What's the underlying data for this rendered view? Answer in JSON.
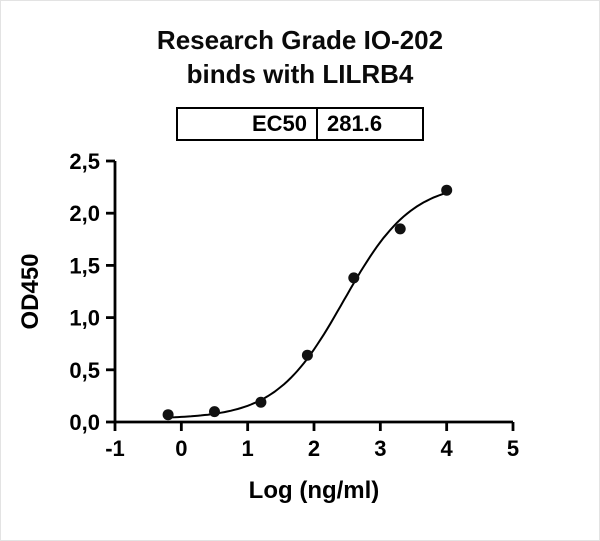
{
  "title_lines": [
    "Research Grade IO-202",
    "binds with LILRB4"
  ],
  "ec50_table": {
    "label": "EC50",
    "value": "281.6"
  },
  "chart_data": {
    "type": "scatter",
    "title": "Research Grade IO-202 binds with LILRB4",
    "xlabel": "Log (ng/ml)",
    "ylabel": "OD450",
    "xlim": [
      -1,
      5
    ],
    "ylim": [
      0,
      2.5
    ],
    "grid": false,
    "legend": "none",
    "x_tick_values": [
      -1,
      0,
      1,
      2,
      3,
      4,
      5
    ],
    "x_tick_labels": [
      "-1",
      "0",
      "1",
      "2",
      "3",
      "4",
      "5"
    ],
    "y_tick_values": [
      0,
      0.5,
      1,
      1.5,
      2,
      2.5
    ],
    "y_tick_labels": [
      "0,0",
      "0,5",
      "1,0",
      "1,5",
      "2,0",
      "2,5"
    ],
    "points": {
      "x": [
        -0.2,
        0.5,
        1.2,
        1.9,
        2.6,
        3.3,
        4.0
      ],
      "y": [
        0.07,
        0.1,
        0.19,
        0.64,
        1.38,
        1.85,
        2.22
      ]
    },
    "fit_curve": {
      "model": "4PL",
      "bottom": 0.03,
      "top": 2.3,
      "log_ec50": 2.45,
      "hill": 0.85,
      "x_start": -0.2,
      "x_end": 4.0
    },
    "ec50_value": 281.6,
    "line_color": "#000000",
    "marker_color": "#111111",
    "axis_color": "#000000"
  }
}
